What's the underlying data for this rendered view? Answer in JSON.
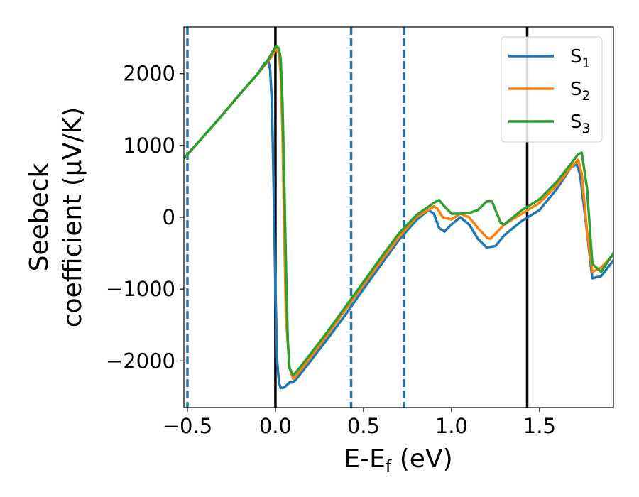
{
  "chart_data": {
    "type": "line",
    "xlabel": {
      "base": "E-E",
      "sub": "f",
      "rest": " (eV)"
    },
    "ylabel_lines": [
      "Seebeck",
      "coefficient  (μV/K)"
    ],
    "xlim": [
      -0.52,
      1.92
    ],
    "ylim": [
      -2650,
      2650
    ],
    "xticks": [
      -0.5,
      0.0,
      0.5,
      1.0,
      1.5
    ],
    "xtick_labels": [
      "−0.5",
      "0.0",
      "0.5",
      "1.0",
      "1.5"
    ],
    "yticks": [
      -2000,
      -1000,
      0,
      1000,
      2000
    ],
    "ytick_labels": [
      "−2000",
      "−1000",
      "0",
      "1000",
      "2000"
    ],
    "grid": false,
    "legend_position": "top-right",
    "vlines_solid": [
      0.0,
      1.43
    ],
    "vlines_dashed": [
      -0.5,
      0.43,
      0.73
    ],
    "vline_solid_color": "#000000",
    "vline_dashed_color": "#1f77b4",
    "series": [
      {
        "name": "S",
        "sub": "1",
        "color": "#1f77b4",
        "x": [
          -0.52,
          -0.4,
          -0.3,
          -0.2,
          -0.1,
          -0.06,
          -0.04,
          -0.03,
          -0.02,
          -0.01,
          0.0,
          0.01,
          0.02,
          0.03,
          0.05,
          0.08,
          0.1,
          0.12,
          0.2,
          0.3,
          0.4,
          0.5,
          0.6,
          0.7,
          0.8,
          0.87,
          0.9,
          0.93,
          0.96,
          1.0,
          1.05,
          1.1,
          1.15,
          1.2,
          1.25,
          1.3,
          1.4,
          1.5,
          1.6,
          1.68,
          1.71,
          1.73,
          1.76,
          1.8,
          1.85,
          1.92
        ],
        "y": [
          820,
          1150,
          1430,
          1720,
          2000,
          2150,
          2180,
          2050,
          1600,
          400,
          -1000,
          -2000,
          -2300,
          -2380,
          -2370,
          -2300,
          -2300,
          -2250,
          -2000,
          -1680,
          -1350,
          -1000,
          -660,
          -320,
          -40,
          100,
          50,
          -150,
          -200,
          -100,
          0,
          -100,
          -300,
          -420,
          -400,
          -250,
          -50,
          100,
          400,
          700,
          740,
          600,
          0,
          -850,
          -820,
          -600
        ]
      },
      {
        "name": "S",
        "sub": "2",
        "color": "#ff7f0e",
        "x": [
          -0.52,
          -0.4,
          -0.3,
          -0.2,
          -0.1,
          -0.04,
          -0.02,
          0.0,
          0.01,
          0.02,
          0.03,
          0.04,
          0.05,
          0.06,
          0.08,
          0.1,
          0.12,
          0.2,
          0.3,
          0.4,
          0.5,
          0.6,
          0.7,
          0.8,
          0.9,
          0.92,
          0.95,
          1.0,
          1.05,
          1.1,
          1.15,
          1.2,
          1.22,
          1.25,
          1.3,
          1.4,
          1.5,
          1.6,
          1.68,
          1.72,
          1.74,
          1.77,
          1.8,
          1.85,
          1.92
        ],
        "y": [
          820,
          1150,
          1430,
          1720,
          2000,
          2180,
          2250,
          2320,
          2340,
          2280,
          2000,
          1200,
          -200,
          -1400,
          -2100,
          -2250,
          -2200,
          -1950,
          -1620,
          -1280,
          -940,
          -610,
          -280,
          0,
          150,
          120,
          0,
          -30,
          50,
          0,
          -150,
          -280,
          -300,
          -230,
          -100,
          50,
          200,
          450,
          700,
          800,
          600,
          -200,
          -760,
          -700,
          -520
        ]
      },
      {
        "name": "S",
        "sub": "3",
        "color": "#2ca02c",
        "x": [
          -0.52,
          -0.4,
          -0.3,
          -0.2,
          -0.1,
          -0.04,
          -0.02,
          0.0,
          0.01,
          0.02,
          0.03,
          0.04,
          0.05,
          0.06,
          0.07,
          0.08,
          0.1,
          0.12,
          0.2,
          0.3,
          0.4,
          0.5,
          0.6,
          0.7,
          0.8,
          0.9,
          0.93,
          0.96,
          1.0,
          1.05,
          1.1,
          1.15,
          1.2,
          1.23,
          1.25,
          1.28,
          1.3,
          1.4,
          1.5,
          1.6,
          1.68,
          1.72,
          1.74,
          1.77,
          1.8,
          1.85,
          1.92
        ],
        "y": [
          820,
          1150,
          1430,
          1720,
          2000,
          2200,
          2290,
          2370,
          2380,
          2350,
          2200,
          1600,
          500,
          -700,
          -1700,
          -2100,
          -2200,
          -2150,
          -1900,
          -1580,
          -1240,
          -900,
          -560,
          -230,
          30,
          200,
          240,
          150,
          50,
          50,
          60,
          100,
          220,
          220,
          100,
          -80,
          -100,
          100,
          250,
          500,
          750,
          880,
          900,
          400,
          -650,
          -760,
          -500
        ]
      }
    ]
  }
}
